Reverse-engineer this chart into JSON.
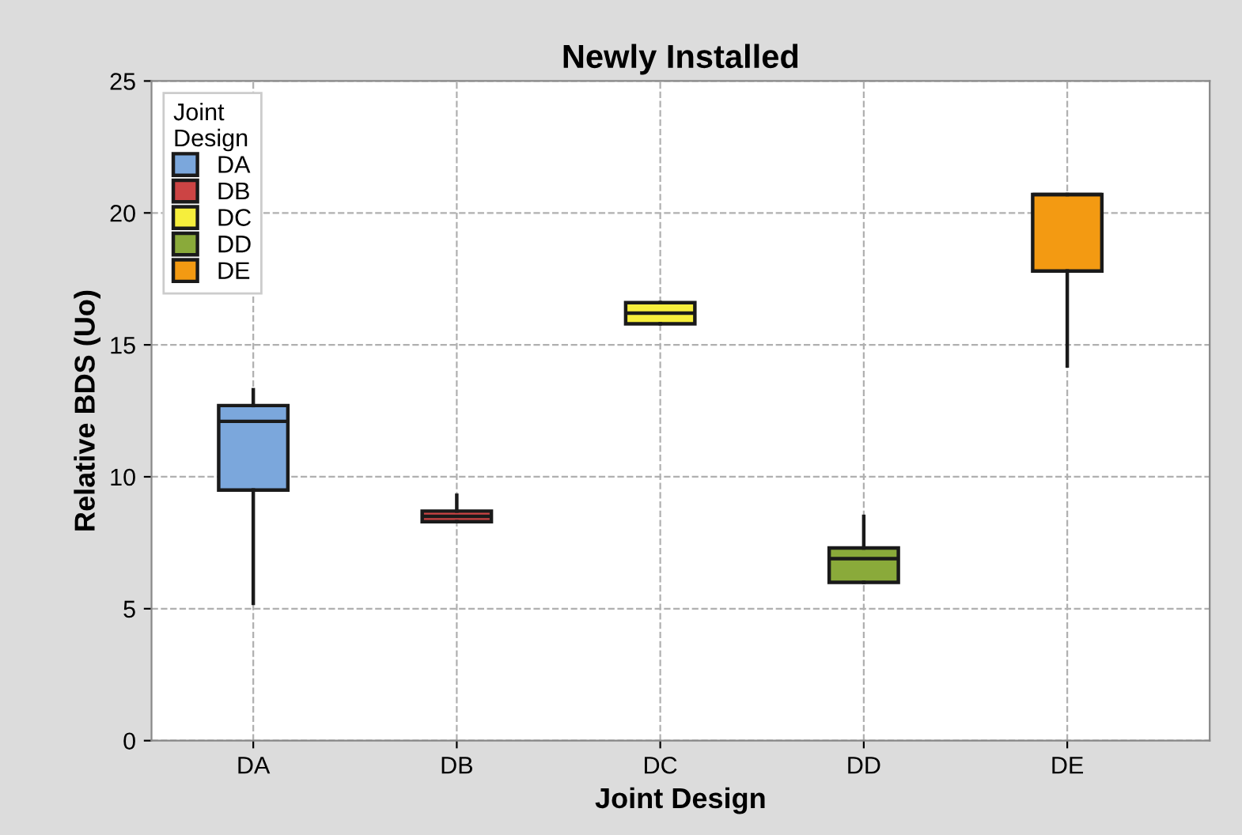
{
  "chart_data": {
    "type": "box",
    "title": "Newly Installed",
    "xlabel": "Joint Design",
    "ylabel": "Relative BDS (Uo)",
    "legend_title": "Joint\nDesign",
    "categories": [
      "DA",
      "DB",
      "DC",
      "DD",
      "DE"
    ],
    "series": [
      {
        "name": "DA",
        "color": "#7ba7dc",
        "boxes": [
          {
            "low": 5.2,
            "q1": 9.5,
            "median": 12.1,
            "q3": 12.7,
            "high": 13.3
          },
          null,
          null,
          null,
          null
        ]
      },
      {
        "name": "DB",
        "color": "#cc4444",
        "boxes": [
          null,
          {
            "low": 8.3,
            "q1": 8.3,
            "median": 8.5,
            "q3": 8.7,
            "high": 9.3
          },
          null,
          null,
          null
        ]
      },
      {
        "name": "DC",
        "color": "#f6ee3c",
        "boxes": [
          null,
          null,
          {
            "low": 15.8,
            "q1": 15.8,
            "median": 16.2,
            "q3": 16.6,
            "high": 16.6
          },
          null,
          null
        ]
      },
      {
        "name": "DD",
        "color": "#8aaa3a",
        "boxes": [
          null,
          null,
          null,
          {
            "low": 6.0,
            "q1": 6.0,
            "median": 6.9,
            "q3": 7.3,
            "high": 8.5
          },
          null
        ]
      },
      {
        "name": "DE",
        "color": "#f39a12",
        "boxes": [
          null,
          null,
          null,
          null,
          {
            "low": 14.2,
            "q1": 17.8,
            "median": 20.7,
            "q3": 20.7,
            "high": 20.7
          }
        ]
      }
    ],
    "ylim": [
      0,
      25
    ],
    "yticks": [
      0,
      5,
      10,
      15,
      20,
      25
    ],
    "grid": true,
    "legend": "top left"
  }
}
